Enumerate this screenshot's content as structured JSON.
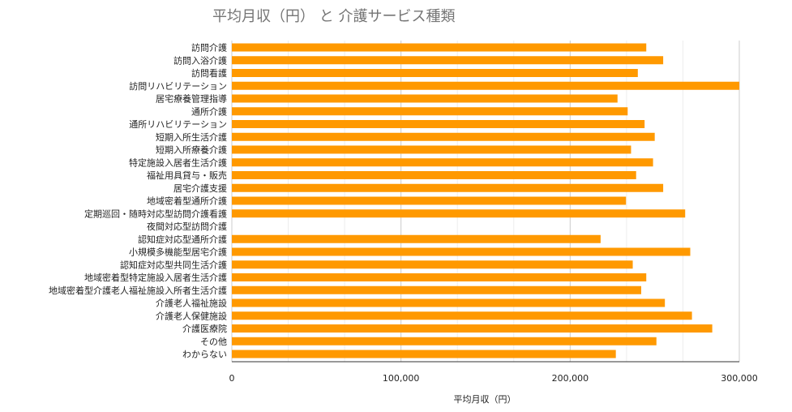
{
  "chart_data": {
    "type": "bar",
    "orientation": "horizontal",
    "title": "平均月収（円） と 介護サービス種類",
    "xlabel": "平均月収（円）",
    "ylabel": "",
    "xlim": [
      0,
      300000
    ],
    "xticks": [
      "0",
      "100,000",
      "200,000",
      "300,000"
    ],
    "grid": true,
    "legend": "none",
    "bar_color": "#ff9900",
    "categories": [
      "訪問介護",
      "訪問入浴介護",
      "訪問看護",
      "訪問リハビリテーション",
      "居宅療養管理指導",
      "通所介護",
      "通所リハビリテーション",
      "短期入所生活介護",
      "短期入所療養介護",
      "特定施設入居者生活介護",
      "福祉用具貸与・販売",
      "居宅介護支援",
      "地域密着型通所介護",
      "定期巡回・随時対応型訪問介護看護",
      "夜間対応型訪問介護",
      "認知症対応型通所介護",
      "小規模多機能型居宅介護",
      "認知症対応型共同生活介護",
      "地域密着型特定施設入居者生活介護",
      "地域密着型介護老人福祉施設入所者生活介護",
      "介護老人福祉施設",
      "介護老人保健施設",
      "介護医療院",
      "その他",
      "わからない"
    ],
    "values": [
      245000,
      255000,
      240000,
      300000,
      228000,
      234000,
      244000,
      250000,
      236000,
      249000,
      239000,
      255000,
      233000,
      268000,
      0,
      218000,
      271000,
      237000,
      245000,
      242000,
      256000,
      272000,
      284000,
      251000,
      227000
    ]
  }
}
